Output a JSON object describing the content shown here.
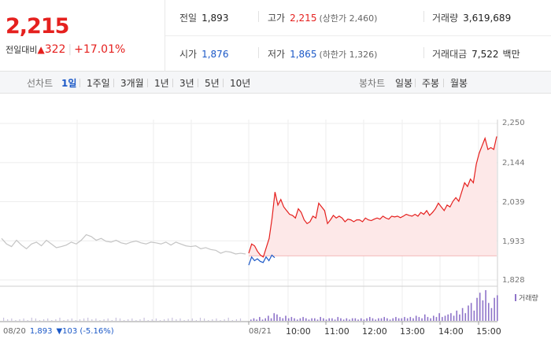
{
  "summary": {
    "price": "2,215",
    "change_label": "전일대비",
    "change_arrow": "▲",
    "change_amount": "322",
    "change_pct": "+17.01%"
  },
  "stats": {
    "prev_label": "전일",
    "prev": "1,893",
    "high_label": "고가",
    "high": "2,215",
    "upper_limit_label": "(상한가 2,460)",
    "volume_label": "거래량",
    "volume": "3,619,689",
    "open_label": "시가",
    "open": "1,876",
    "low_label": "저가",
    "low": "1,865",
    "lower_limit_label": "(하한가 1,326)",
    "amount_label": "거래대금",
    "amount": "7,522",
    "amount_unit": "백만"
  },
  "tabs": {
    "line_label": "선차트",
    "line_periods": [
      "1일",
      "1주일",
      "3개월",
      "1년",
      "3년",
      "5년",
      "10년"
    ],
    "active_period": "1일",
    "candle_label": "봉차트",
    "candle_periods": [
      "일봉",
      "주봉",
      "월봉"
    ]
  },
  "colors": {
    "up": "#e5201e",
    "down": "#1b58c7",
    "prev_day": "#c4c4c4",
    "volume": "#8e73c9",
    "fill": "#fde8e8"
  },
  "chart_data": {
    "type": "line",
    "y_ticks": [
      "2,250",
      "2,144",
      "2,039",
      "1,933",
      "1,828"
    ],
    "ylim": [
      1828,
      2250
    ],
    "baseline": 1893,
    "volume_legend": "거래량",
    "prev_day_label": "08/20",
    "prev_day_close": "1,893",
    "prev_day_change": "▼103 (-5.16%)",
    "day_label": "08/21",
    "time_ticks": [
      "10:00",
      "11:00",
      "12:00",
      "13:00",
      "14:00",
      "15:00"
    ],
    "series": [
      {
        "values": [
          1940,
          1925,
          1918,
          1935,
          1922,
          1912,
          1925,
          1930,
          1920,
          1935,
          1925,
          1915,
          1918,
          1922,
          1930,
          1925,
          1935,
          1950,
          1945,
          1935,
          1940,
          1932,
          1930,
          1935,
          1928,
          1925,
          1930,
          1933,
          1928,
          1925,
          1930,
          1928,
          1925,
          1930,
          1922,
          1930,
          1925,
          1920,
          1918,
          1920,
          1912,
          1915,
          1910,
          1908,
          1900,
          1905,
          1903,
          1898,
          1900,
          1898
        ]
      },
      {
        "values": [
          1868,
          1890,
          1880,
          1885,
          1878,
          1875,
          1890,
          1880,
          1895,
          1888
        ]
      },
      {
        "values": [
          1900,
          1925,
          1920,
          1905,
          1895,
          1890,
          1915,
          1940,
          1995,
          2065,
          2030,
          2045,
          2025,
          2015,
          2005,
          2002,
          1995,
          2020,
          2010,
          1990,
          1980,
          1985,
          2000,
          1995,
          2035,
          2025,
          2015,
          1980,
          1990,
          2002,
          1995,
          2000,
          1995,
          1985,
          1992,
          1990,
          1985,
          1990,
          1990,
          1985,
          1995,
          1990,
          1988,
          1992,
          1995,
          1992,
          2000,
          1995,
          1992,
          2000,
          1998,
          2000,
          1996,
          2000,
          2005,
          2002,
          2000,
          2005,
          2000,
          2010,
          2005,
          2015,
          2002,
          2010,
          2020,
          2035,
          2025,
          2015,
          2030,
          2025,
          2040,
          2050,
          2040,
          2065,
          2090,
          2080,
          2100,
          2090,
          2140,
          2170,
          2190,
          2210,
          2180,
          2185,
          2180,
          2215
        ]
      }
    ],
    "volume": [
      1,
      2,
      1,
      3,
      1,
      2,
      4,
      2,
      6,
      5,
      3,
      2,
      4,
      2,
      3,
      2,
      1,
      2,
      3,
      2,
      1,
      2,
      2,
      1,
      3,
      2,
      1,
      2,
      2,
      1,
      3,
      2,
      1,
      2,
      1,
      2,
      2,
      1,
      2,
      1,
      2,
      3,
      2,
      1,
      2,
      2,
      3,
      2,
      1,
      2,
      3,
      2,
      2,
      3,
      2,
      3,
      2,
      4,
      3,
      2,
      5,
      3,
      2,
      4,
      3,
      6,
      3,
      4,
      5,
      6,
      4,
      8,
      5,
      10,
      6,
      12,
      14,
      8,
      18,
      22,
      16,
      24,
      14,
      10,
      18,
      20
    ]
  }
}
